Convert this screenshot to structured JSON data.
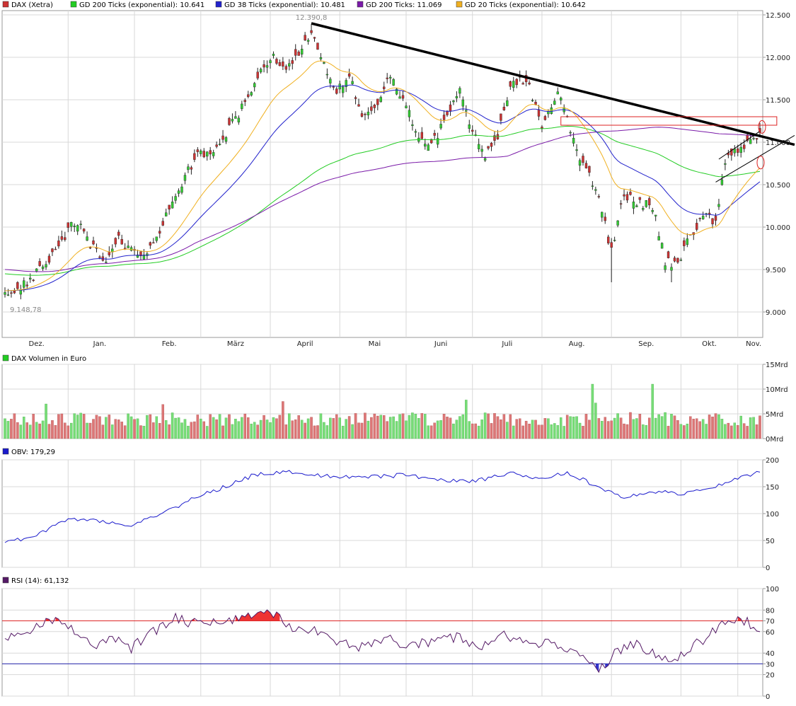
{
  "colors": {
    "grid": "#d8d8d8",
    "panel_border": "#9a9a9a",
    "up": "#33cc33",
    "down": "#cc3333",
    "wick": "#222222",
    "ema200": "#22cc22",
    "ema38": "#2222cc",
    "sma200": "#7a1aa8",
    "ema20": "#f0b020",
    "trendline": "#000000",
    "resistance_box": "#dd2222",
    "vol_up": "#77dd77",
    "vol_down": "#dd7777",
    "obv": "#1a1acc",
    "rsi": "#551a66",
    "rsi_hi_line": "#dd2222",
    "rsi_lo_line": "#2222aa",
    "rsi_hi_fill": "#ee3333",
    "rsi_lo_fill": "#3333cc"
  },
  "legend": [
    {
      "label": "DAX (Xetra)",
      "color": "#cc3333"
    },
    {
      "label": "GD 200 Ticks (exponential): 10.641",
      "color": "#22cc22"
    },
    {
      "label": "GD 38 Ticks (exponential): 10.481",
      "color": "#2222cc"
    },
    {
      "label": "GD 200 Ticks: 11.069",
      "color": "#7a1aa8"
    },
    {
      "label": "GD 20 Ticks (exponential): 10.642",
      "color": "#f0b020"
    }
  ],
  "months": [
    "Dez.",
    "Jan.",
    "Feb.",
    "März",
    "April",
    "Mai",
    "Juni",
    "Juli",
    "Aug.",
    "Sep.",
    "Okt.",
    "Nov."
  ],
  "volume_title": "DAX Volumen in Euro",
  "obv_title": "OBV: 179,29",
  "rsi_title": "RSI (14): 61,132",
  "chart_data": [
    {
      "type": "candlestick",
      "title": "DAX (Xetra)",
      "ylim": [
        8700,
        12550
      ],
      "yticks": [
        {
          "v": 12500,
          "label": "12.500"
        },
        {
          "v": 12000,
          "label": "12.000"
        },
        {
          "v": 11500,
          "label": "11.500"
        },
        {
          "v": 11000,
          "label": "11.000"
        },
        {
          "v": 10500,
          "label": "10.500"
        },
        {
          "v": 10000,
          "label": "10.000"
        },
        {
          "v": 9500,
          "label": "9.500"
        },
        {
          "v": 9000,
          "label": "9.000"
        }
      ],
      "x_axis": "months Dez. to Nov.",
      "high_label": "12.390,8",
      "low_label": "9.148,78",
      "price_anchors": [
        [
          0,
          9250
        ],
        [
          5,
          9300
        ],
        [
          10,
          9450
        ],
        [
          14,
          9600
        ],
        [
          18,
          9850
        ],
        [
          22,
          10050
        ],
        [
          25,
          9950
        ],
        [
          28,
          9750
        ],
        [
          32,
          9550
        ],
        [
          36,
          9850
        ],
        [
          40,
          9700
        ],
        [
          44,
          9650
        ],
        [
          48,
          9850
        ],
        [
          52,
          10200
        ],
        [
          57,
          10600
        ],
        [
          61,
          10850
        ],
        [
          65,
          10900
        ],
        [
          70,
          11100
        ],
        [
          75,
          11400
        ],
        [
          80,
          11800
        ],
        [
          84,
          12000
        ],
        [
          89,
          11900
        ],
        [
          93,
          12050
        ],
        [
          97,
          12300
        ],
        [
          101,
          11900
        ],
        [
          105,
          11600
        ],
        [
          109,
          11800
        ],
        [
          113,
          11300
        ],
        [
          118,
          11500
        ],
        [
          122,
          11800
        ],
        [
          127,
          11400
        ],
        [
          131,
          11100
        ],
        [
          135,
          10950
        ],
        [
          140,
          11300
        ],
        [
          144,
          11600
        ],
        [
          148,
          11100
        ],
        [
          152,
          10850
        ],
        [
          156,
          11050
        ],
        [
          160,
          11650
        ],
        [
          165,
          11750
        ],
        [
          170,
          11150
        ],
        [
          175,
          11550
        ],
        [
          178,
          11300
        ],
        [
          182,
          10800
        ],
        [
          185,
          10600
        ],
        [
          189,
          10200
        ],
        [
          192,
          9700
        ],
        [
          196,
          10400
        ],
        [
          200,
          10300
        ],
        [
          205,
          10250
        ],
        [
          209,
          9600
        ],
        [
          213,
          9550
        ],
        [
          217,
          9900
        ],
        [
          221,
          10150
        ],
        [
          225,
          10050
        ],
        [
          228,
          10800
        ],
        [
          232,
          10900
        ],
        [
          236,
          11000
        ],
        [
          239,
          11060
        ]
      ],
      "lines": [
        {
          "name": "GD 200 Ticks (exponential)",
          "last": 10641
        },
        {
          "name": "GD 38 Ticks (exponential)",
          "last": 10481
        },
        {
          "name": "GD 200 Ticks",
          "last": 11069
        },
        {
          "name": "GD 20 Ticks (exponential)",
          "last": 10642
        }
      ]
    },
    {
      "type": "bar",
      "title": "DAX Volumen in Euro",
      "ylim": [
        0,
        15
      ],
      "yticks": [
        {
          "v": 15,
          "label": "15Mrd"
        },
        {
          "v": 10,
          "label": "10Mrd"
        },
        {
          "v": 5,
          "label": "5Mrd"
        },
        {
          "v": 0,
          "label": "0Mrd"
        }
      ]
    },
    {
      "type": "line",
      "title": "OBV: 179,29",
      "ylim": [
        0,
        200
      ],
      "yticks": [
        {
          "v": 200,
          "label": "200"
        },
        {
          "v": 150,
          "label": "150"
        },
        {
          "v": 100,
          "label": "100"
        },
        {
          "v": 50,
          "label": "50"
        },
        {
          "v": 0,
          "label": "0"
        }
      ],
      "anchors": [
        [
          0,
          48
        ],
        [
          8,
          55
        ],
        [
          15,
          75
        ],
        [
          20,
          90
        ],
        [
          28,
          88
        ],
        [
          40,
          80
        ],
        [
          48,
          95
        ],
        [
          55,
          115
        ],
        [
          62,
          135
        ],
        [
          70,
          150
        ],
        [
          78,
          170
        ],
        [
          88,
          178
        ],
        [
          100,
          170
        ],
        [
          115,
          168
        ],
        [
          128,
          172
        ],
        [
          140,
          160
        ],
        [
          150,
          162
        ],
        [
          160,
          175
        ],
        [
          168,
          165
        ],
        [
          178,
          175
        ],
        [
          188,
          150
        ],
        [
          196,
          130
        ],
        [
          205,
          140
        ],
        [
          215,
          138
        ],
        [
          225,
          150
        ],
        [
          232,
          165
        ],
        [
          239,
          179
        ]
      ]
    },
    {
      "type": "line",
      "title": "RSI (14): 61,132",
      "ylim": [
        0,
        100
      ],
      "yticks": [
        {
          "v": 100,
          "label": "100"
        },
        {
          "v": 80,
          "label": "80"
        },
        {
          "v": 70,
          "label": "70"
        },
        {
          "v": 60,
          "label": "60"
        },
        {
          "v": 40,
          "label": "40"
        },
        {
          "v": 30,
          "label": "30"
        },
        {
          "v": 20,
          "label": "20"
        },
        {
          "v": 0,
          "label": "0"
        }
      ],
      "levels": [
        70,
        30
      ],
      "anchors": [
        [
          0,
          55
        ],
        [
          8,
          60
        ],
        [
          16,
          72
        ],
        [
          22,
          60
        ],
        [
          28,
          45
        ],
        [
          34,
          55
        ],
        [
          40,
          45
        ],
        [
          48,
          62
        ],
        [
          54,
          72
        ],
        [
          60,
          68
        ],
        [
          68,
          70
        ],
        [
          76,
          74
        ],
        [
          84,
          78
        ],
        [
          90,
          65
        ],
        [
          98,
          62
        ],
        [
          104,
          50
        ],
        [
          112,
          45
        ],
        [
          120,
          55
        ],
        [
          128,
          46
        ],
        [
          136,
          52
        ],
        [
          144,
          55
        ],
        [
          150,
          45
        ],
        [
          158,
          58
        ],
        [
          166,
          46
        ],
        [
          172,
          52
        ],
        [
          178,
          45
        ],
        [
          184,
          38
        ],
        [
          188,
          22
        ],
        [
          194,
          42
        ],
        [
          200,
          48
        ],
        [
          206,
          40
        ],
        [
          211,
          32
        ],
        [
          216,
          42
        ],
        [
          222,
          55
        ],
        [
          228,
          70
        ],
        [
          234,
          70
        ],
        [
          239,
          61
        ]
      ]
    }
  ]
}
